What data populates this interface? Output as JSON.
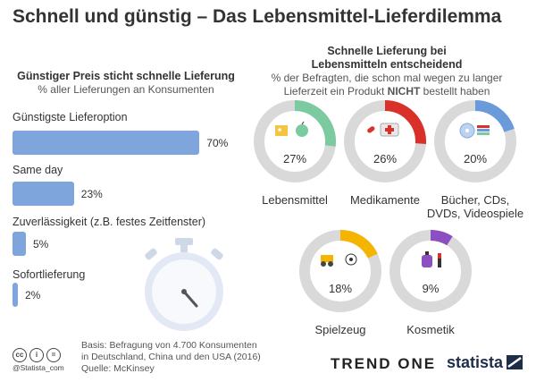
{
  "title": "Schnell und günstig – Das Lebensmittel-Lieferdilemma",
  "left_header": {
    "title": "Günstiger Preis sticht schnelle Lieferung",
    "subtitle": "% aller Lieferungen an Konsumenten"
  },
  "right_header": {
    "title_line1": "Schnelle Lieferung bei",
    "title_line2": "Lebensmitteln entscheidend",
    "subtitle_line1": "% der Befragten, die schon mal wegen zu langer",
    "subtitle_line2_pre": "Lieferzeit ein Produkt ",
    "subtitle_line2_bold": "NICHT",
    "subtitle_line2_post": " bestellt haben"
  },
  "chart_data": [
    {
      "type": "bar",
      "orientation": "horizontal",
      "title": "Günstiger Preis sticht schnelle Lieferung",
      "subtitle": "% aller Lieferungen an Konsumenten",
      "categories": [
        "Günstigste Lieferoption",
        "Same day",
        "Zuverlässigkeit (z.B. festes Zeitfenster)",
        "Sofortlieferung"
      ],
      "values": [
        70,
        23,
        5,
        2
      ],
      "value_labels": [
        "70%",
        "23%",
        "5%",
        "2%"
      ],
      "xlim": [
        0,
        100
      ],
      "color": "#7ea6dc"
    },
    {
      "type": "pie",
      "style": "donut",
      "title": "Schnelle Lieferung bei Lebensmitteln entscheidend",
      "categories": [
        "Lebensmittel",
        "Medikamente",
        "Bücher, CDs, DVDs, Videospiele",
        "Spielzeug",
        "Kosmetik"
      ],
      "label_lines": [
        [
          "Lebensmittel"
        ],
        [
          "Medikamente"
        ],
        [
          "Bücher, CDs,",
          "DVDs, Videospiele"
        ],
        [
          "Spielzeug"
        ],
        [
          "Kosmetik"
        ]
      ],
      "values": [
        27,
        26,
        20,
        18,
        9
      ],
      "value_labels": [
        "27%",
        "26%",
        "20%",
        "18%",
        "9%"
      ],
      "colors": [
        "#7ccba0",
        "#d9302a",
        "#6a9ad9",
        "#f5b400",
        "#8c4fc1"
      ],
      "icons": [
        "food-icon",
        "medicine-icon",
        "media-icon",
        "toy-icon",
        "cosmetics-icon"
      ],
      "track_color": "#d9d9d9"
    }
  ],
  "footer": {
    "handle": "@Statista_com",
    "source_line1": "Basis: Befragung von 4.700 Konsumenten",
    "source_line2": "in Deutschland, China und den USA (2016)",
    "source_line3": "Quelle: McKinsey",
    "brand1": "TREND ONE",
    "brand2": "statista"
  }
}
